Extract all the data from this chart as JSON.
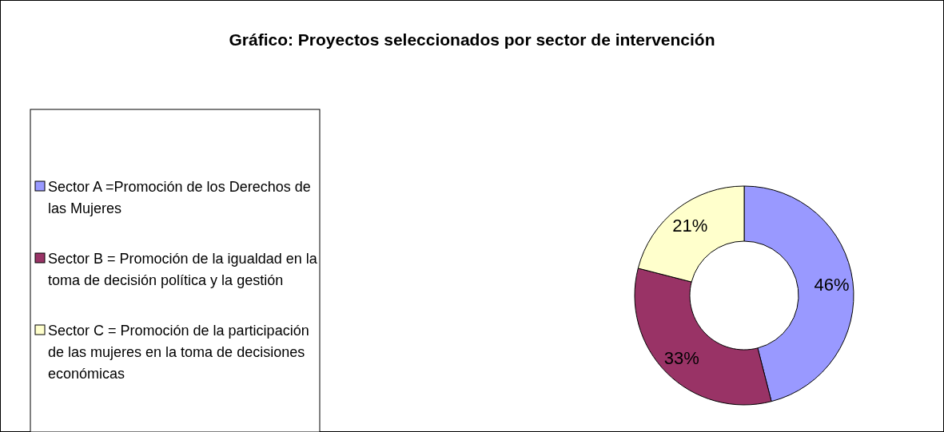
{
  "chart_data": {
    "type": "donut",
    "title": "Gráfico: Proyectos seleccionados por sector de intervención",
    "categories": [
      "Sector A =Promoción de los Derechos de las Mujeres",
      "Sector B = Promoción de la igualdad en la toma de decisión política y la gestión",
      "Sector C = Promoción de la participación de las mujeres en la toma de decisiones económicas"
    ],
    "values": [
      46,
      33,
      21
    ],
    "colors": [
      "#9999ff",
      "#993366",
      "#ffffcc"
    ],
    "value_labels": [
      "46%",
      "33%",
      "21%"
    ],
    "legend": "left"
  }
}
